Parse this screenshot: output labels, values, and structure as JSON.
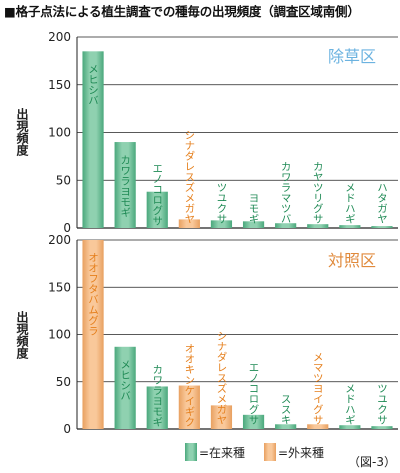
{
  "figure": {
    "title": "■格子点法による植生調査での種毎の出現頻度（調査区域南側）",
    "caption": "（図-3）"
  },
  "legend": {
    "native": "=在来種",
    "alien": "=外来種"
  },
  "colors": {
    "native": "#8fd1b0",
    "native_dark": "#4aa87c",
    "alien": "#f9c89a",
    "alien_dark": "#e8a060",
    "native_text": "#1f8a55",
    "alien_text": "#e57f1c",
    "panel_title": "#e08a3c",
    "panel_title_blue": "#6cb3e0",
    "axis": "#222222",
    "grid": "#222222"
  },
  "chart_data": [
    {
      "type": "bar",
      "title": "除草区",
      "ylabel": "出現頻度",
      "ylim": [
        0,
        200
      ],
      "yticks": [
        0,
        50,
        100,
        150,
        200
      ],
      "grid": "horizontal",
      "categories": [
        "メヒシバ",
        "カワラヨモギ",
        "エノコログサ",
        "シナダレスズメガヤ",
        "ツユクサ",
        "ヨモギ",
        "カワラマツバ",
        "カヤツリグサ",
        "メドハギ",
        "ハタガヤ"
      ],
      "values": [
        185,
        90,
        38,
        9,
        8,
        7,
        5,
        4,
        3,
        2
      ],
      "origin": [
        "native",
        "native",
        "native",
        "alien",
        "native",
        "native",
        "native",
        "native",
        "native",
        "native"
      ]
    },
    {
      "type": "bar",
      "title": "対照区",
      "ylabel": "出現頻度",
      "ylim": [
        0,
        200
      ],
      "yticks": [
        0,
        50,
        100,
        150,
        200
      ],
      "grid": "horizontal",
      "categories": [
        "オオフタバムグラ",
        "メヒシバ",
        "カワラヨモギ",
        "オオキンケイギク",
        "シナダレスズメガヤ",
        "エノコログサ",
        "ススキ",
        "メマツヨイグサ",
        "メドハギ",
        "ツユクサ"
      ],
      "values": [
        200,
        87,
        45,
        46,
        25,
        15,
        5,
        5,
        4,
        3
      ],
      "origin": [
        "alien",
        "native",
        "native",
        "alien",
        "alien",
        "native",
        "native",
        "alien",
        "native",
        "native"
      ]
    }
  ]
}
